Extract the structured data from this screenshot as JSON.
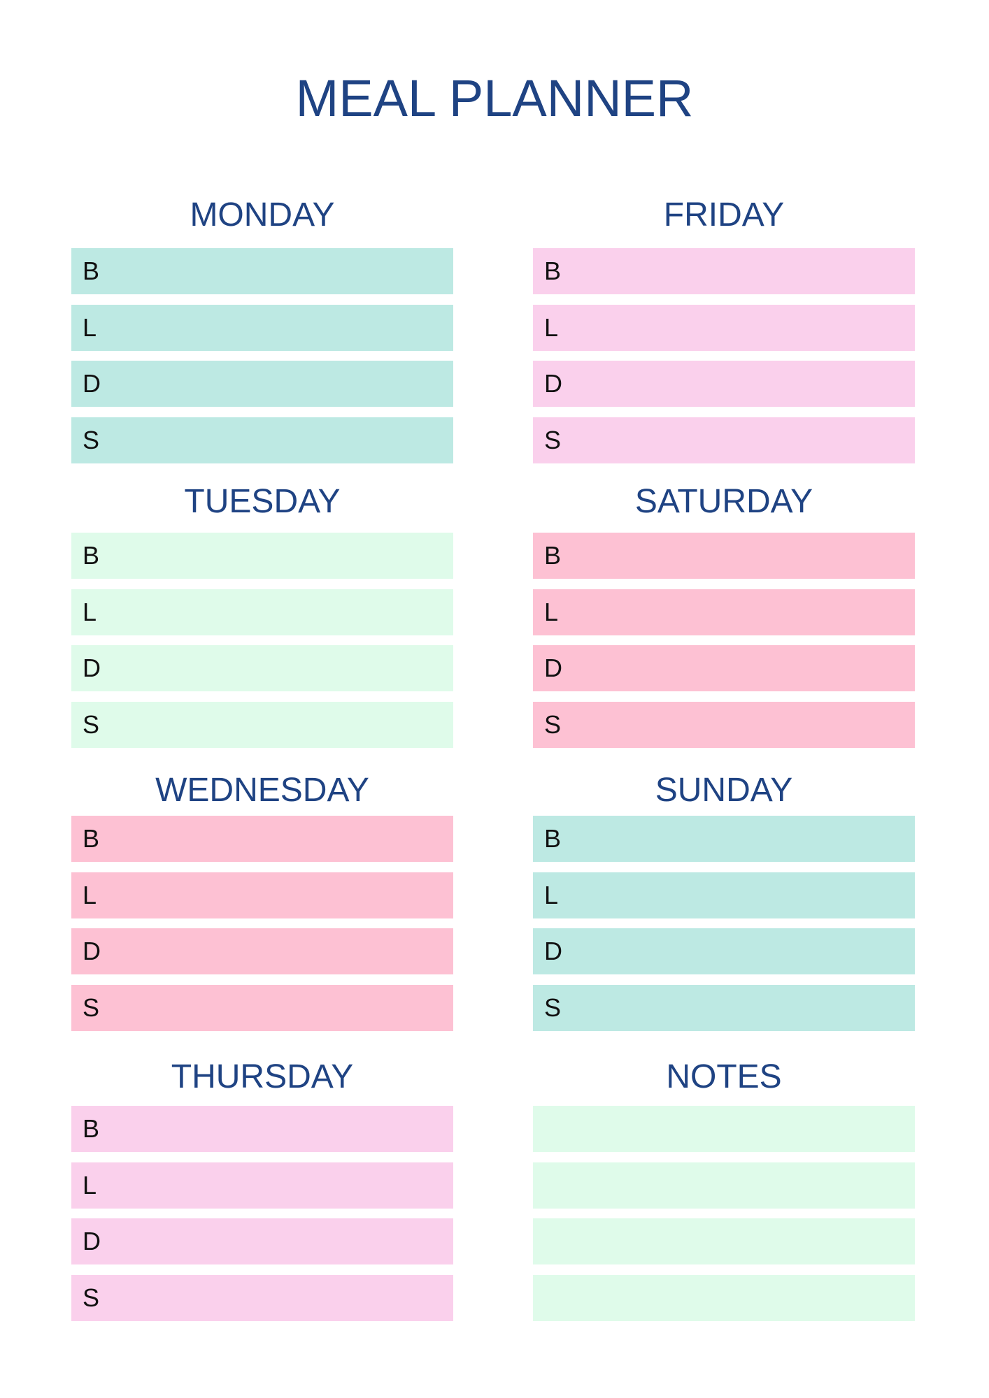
{
  "header": {
    "title": "MEAL PLANNER"
  },
  "days": [
    {
      "name": "MONDAY",
      "meals": [
        "B",
        "L",
        "D",
        "S"
      ]
    },
    {
      "name": "TUESDAY",
      "meals": [
        "B",
        "L",
        "D",
        "S"
      ]
    },
    {
      "name": "WEDNESDAY",
      "meals": [
        "B",
        "L",
        "D",
        "S"
      ]
    },
    {
      "name": "THURSDAY",
      "meals": [
        "B",
        "L",
        "D",
        "S"
      ]
    },
    {
      "name": "FRIDAY",
      "meals": [
        "B",
        "L",
        "D",
        "S"
      ]
    },
    {
      "name": "SATURDAY",
      "meals": [
        "B",
        "L",
        "D",
        "S"
      ]
    },
    {
      "name": "SUNDAY",
      "meals": [
        "B",
        "L",
        "D",
        "S"
      ]
    }
  ],
  "notes": {
    "title": "NOTES"
  }
}
